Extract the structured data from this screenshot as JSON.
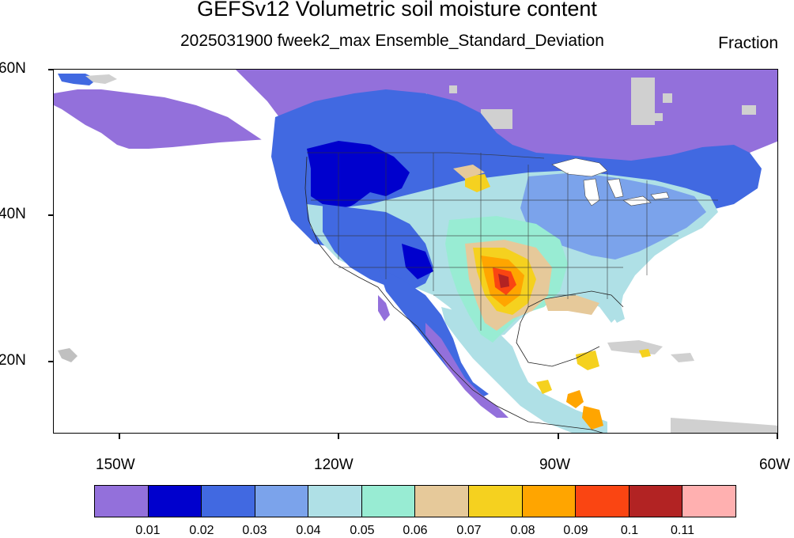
{
  "title": "GEFSv12 Volumetric soil moisture content",
  "subtitle": "2025031900 fweek2_max Ensemble_Standard_Deviation",
  "units": "Fraction",
  "lat_labels": [
    "60N",
    "40N",
    "20N"
  ],
  "lon_labels": [
    "150W",
    "120W",
    "90W",
    "60W"
  ],
  "colorbar": {
    "colors": [
      "#9370db",
      "#0000cd",
      "#4169e1",
      "#7ba3eb",
      "#afe0e6",
      "#98ecd3",
      "#e6c99a",
      "#f5d11f",
      "#ffa500",
      "#fa4512",
      "#b22323",
      "#ffb0b0"
    ],
    "labels": [
      "0.01",
      "0.02",
      "0.03",
      "0.04",
      "0.05",
      "0.06",
      "0.07",
      "0.08",
      "0.09",
      "0.1",
      "0.11"
    ]
  }
}
